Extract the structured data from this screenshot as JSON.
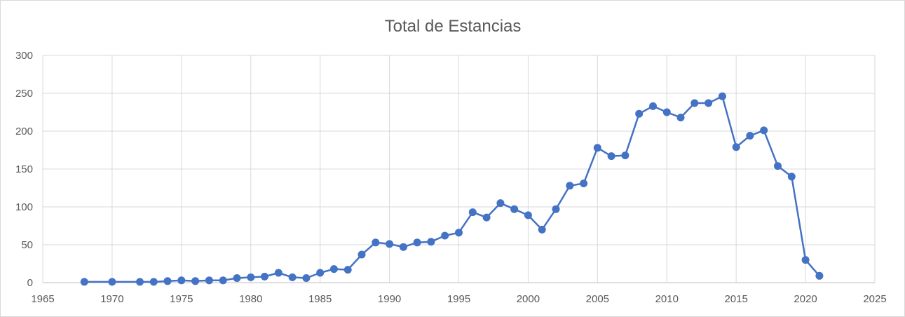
{
  "chart_data": {
    "type": "scatter",
    "title": "Total de Estancias",
    "xlabel": "",
    "ylabel": "",
    "xlim": [
      1965,
      2025
    ],
    "ylim": [
      0,
      300
    ],
    "x_ticks": [
      "1965",
      "1970",
      "1975",
      "1980",
      "1985",
      "1990",
      "1995",
      "2000",
      "2005",
      "2010",
      "2015",
      "2020",
      "2025"
    ],
    "y_ticks": [
      "0",
      "50",
      "100",
      "150",
      "200",
      "250",
      "300"
    ],
    "grid": true,
    "legend": "none",
    "series_color": "#4472c4",
    "x": [
      1968,
      1970,
      1972,
      1973,
      1974,
      1975,
      1976,
      1977,
      1978,
      1979,
      1980,
      1981,
      1982,
      1983,
      1984,
      1985,
      1986,
      1987,
      1988,
      1989,
      1990,
      1991,
      1992,
      1993,
      1994,
      1995,
      1996,
      1997,
      1998,
      1999,
      2000,
      2001,
      2002,
      2003,
      2004,
      2005,
      2006,
      2007,
      2008,
      2009,
      2010,
      2011,
      2012,
      2013,
      2014,
      2015,
      2016,
      2017,
      2018,
      2019,
      2020,
      2021
    ],
    "y": [
      1,
      1,
      1,
      1,
      2,
      3,
      2,
      3,
      3,
      6,
      7,
      8,
      13,
      7,
      6,
      13,
      18,
      17,
      37,
      53,
      51,
      47,
      53,
      54,
      62,
      66,
      93,
      86,
      105,
      97,
      89,
      70,
      97,
      128,
      131,
      178,
      167,
      168,
      223,
      233,
      225,
      218,
      237,
      237,
      246,
      179,
      194,
      201,
      154,
      140,
      30,
      9
    ]
  }
}
